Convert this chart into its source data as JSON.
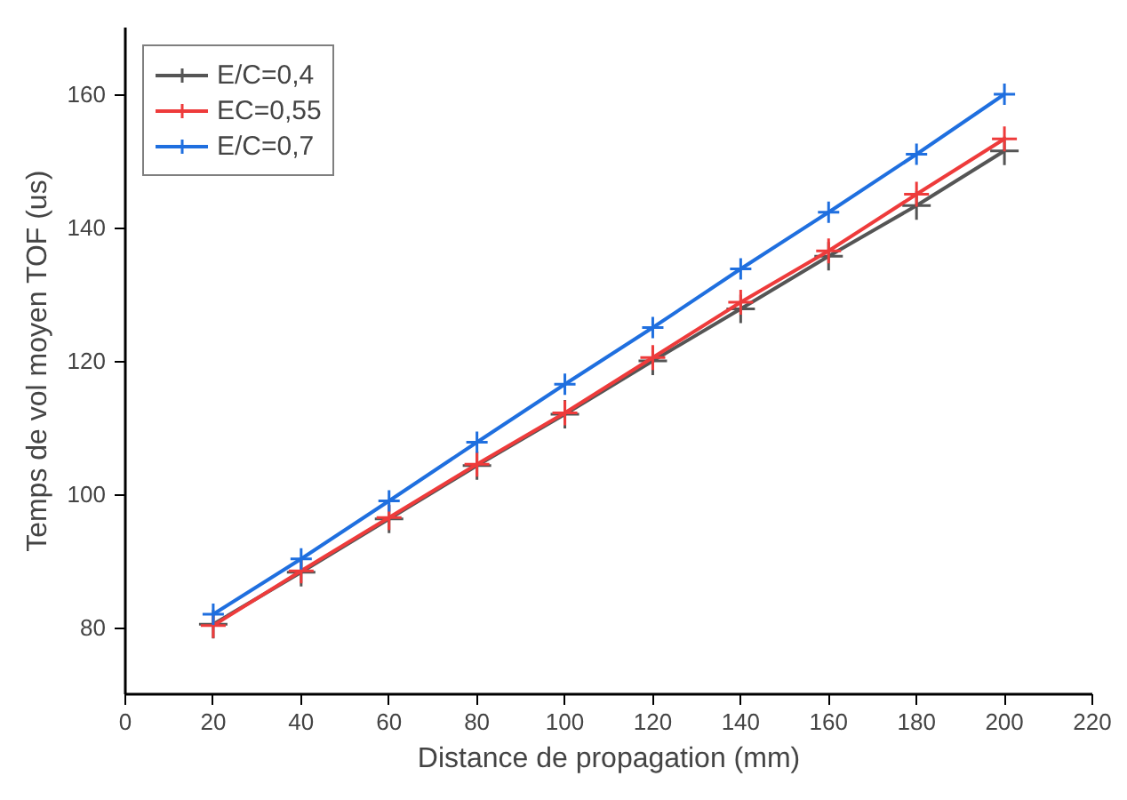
{
  "chart_data": {
    "type": "line",
    "xlabel": "Distance de propagation (mm)",
    "ylabel": "Temps de vol moyen TOF (us)",
    "x": [
      20,
      40,
      60,
      80,
      100,
      120,
      140,
      160,
      180,
      200
    ],
    "series": [
      {
        "name": "E/C=0,4",
        "color": "#555555",
        "values": [
          80.5,
          88.3,
          96.3,
          104.3,
          112,
          120,
          127.8,
          135.7,
          143.3,
          151.5
        ]
      },
      {
        "name": "EC=0,55",
        "color": "#ee3b3b",
        "values": [
          80.3,
          88.5,
          96.5,
          104.5,
          112.2,
          120.5,
          128.8,
          136.5,
          145,
          153.3
        ]
      },
      {
        "name": "E/C=0,7",
        "color": "#1f6fdf",
        "values": [
          82,
          90.3,
          99,
          107.8,
          116.5,
          125,
          133.8,
          142.3,
          151,
          160
        ]
      }
    ],
    "xlim": [
      0,
      220
    ],
    "xticks": [
      0,
      20,
      40,
      60,
      80,
      100,
      120,
      140,
      160,
      180,
      200,
      220
    ],
    "ylim": [
      70,
      170
    ],
    "yticks": [
      80,
      100,
      120,
      140,
      160
    ],
    "marker": "cross",
    "line_style": "solid",
    "grid": false,
    "legend": "top left"
  }
}
